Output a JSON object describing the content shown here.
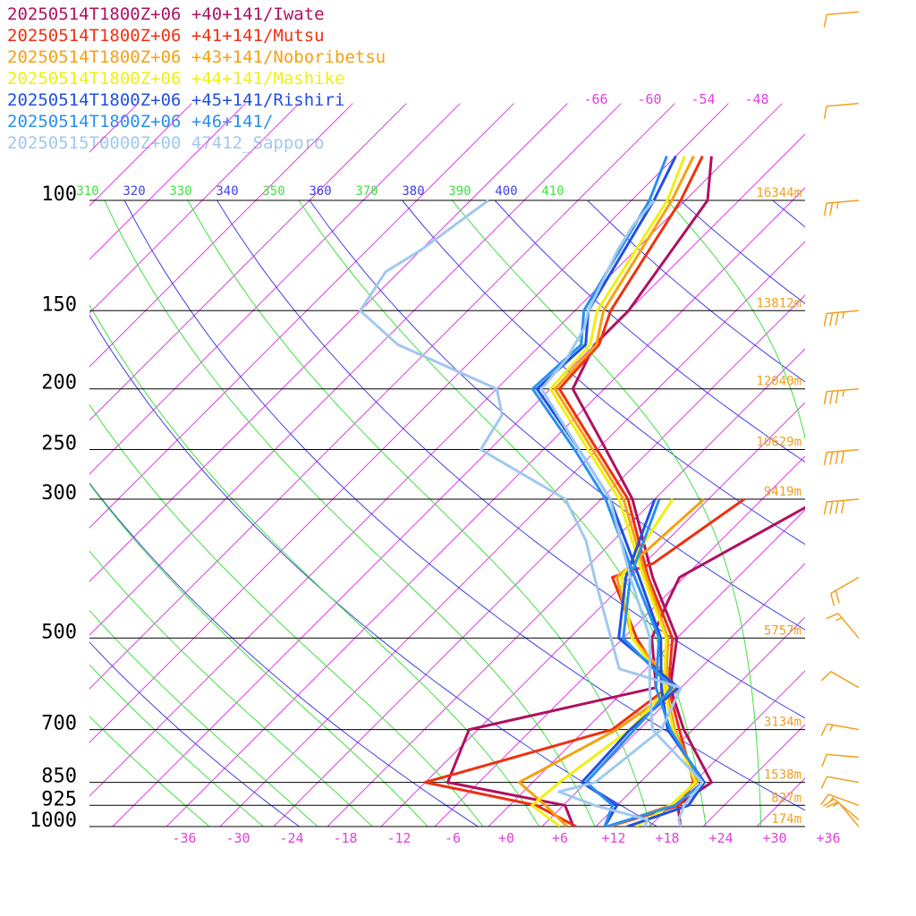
{
  "legend": [
    {
      "label": "20250514T1800Z+06 +40+141/Iwate",
      "color": "#b01060"
    },
    {
      "label": "20250514T1800Z+06 +41+141/Mutsu",
      "color": "#f03010"
    },
    {
      "label": "20250514T1800Z+06 +43+141/Noboribetsu",
      "color": "#f7a010"
    },
    {
      "label": "20250514T1800Z+06 +44+141/Mashike",
      "color": "#f0f010"
    },
    {
      "label": "20250514T1800Z+06 +45+141/Rishiri",
      "color": "#2050e0"
    },
    {
      "label": "20250514T1800Z+06 +46+141/",
      "color": "#2890f0"
    },
    {
      "label": "20250515T0000Z+00 47412_Sapporo",
      "color": "#a0c8f0"
    }
  ],
  "colors": {
    "isotherm": "#e040e0",
    "dry_adiabat": "#4040e8",
    "moist_adiabat": "#40e040",
    "height_label": "#f0a020",
    "wind_barb": "#f0a020",
    "isobar": "#000000"
  },
  "chart_data": {
    "type": "line",
    "subtype": "skew-t log-p sounding",
    "x_axis": {
      "label": "",
      "range": [
        -40,
        40
      ],
      "tick_labels": [
        "-36",
        "-30",
        "-24",
        "-18",
        "-12",
        "-6",
        "+0",
        "+6",
        "+12",
        "+18",
        "+24",
        "+30",
        "+36"
      ]
    },
    "y_axis": {
      "label": "",
      "scale": "log",
      "range": [
        1000,
        100
      ],
      "pressure_levels": [
        {
          "p": 100,
          "label": "100",
          "height": "16344m"
        },
        {
          "p": 150,
          "label": "150",
          "height": "13812m"
        },
        {
          "p": 200,
          "label": "200",
          "height": "12040m"
        },
        {
          "p": 250,
          "label": "250",
          "height": "10629m"
        },
        {
          "p": 300,
          "label": "300",
          "height": "9419m"
        },
        {
          "p": 500,
          "label": "500",
          "height": "5757m"
        },
        {
          "p": 700,
          "label": "700",
          "height": "3134m"
        },
        {
          "p": 850,
          "label": "850",
          "height": "1538m"
        },
        {
          "p": 925,
          "label": "925",
          "height": "827m"
        },
        {
          "p": 1000,
          "label": "1000",
          "height": "174m"
        }
      ]
    },
    "theta_labels": [
      {
        "t": "310",
        "kind": "moist"
      },
      {
        "t": "320",
        "kind": "dry"
      },
      {
        "t": "330",
        "kind": "moist"
      },
      {
        "t": "340",
        "kind": "dry"
      },
      {
        "t": "350",
        "kind": "moist"
      },
      {
        "t": "360",
        "kind": "dry"
      },
      {
        "t": "370",
        "kind": "moist"
      },
      {
        "t": "380",
        "kind": "dry"
      },
      {
        "t": "390",
        "kind": "moist"
      },
      {
        "t": "400",
        "kind": "dry"
      },
      {
        "t": "410",
        "kind": "moist"
      }
    ],
    "upper_isotherm_labels": [
      "-66",
      "-60",
      "-54",
      "-48"
    ],
    "series": [
      {
        "name": "20250514T1800Z+06 +40+141/Iwate",
        "temperature": [
          [
            1000,
            19.5
          ],
          [
            925,
            16.8
          ],
          [
            850,
            18.0
          ],
          [
            700,
            9.0
          ],
          [
            600,
            2.8
          ],
          [
            500,
            -2.0
          ],
          [
            400,
            -11.5
          ],
          [
            300,
            -22.5
          ],
          [
            250,
            -31.0
          ],
          [
            200,
            -41.5
          ],
          [
            170,
            -44.0
          ],
          [
            150,
            -44.0
          ],
          [
            100,
            -47.5
          ],
          [
            85,
            -52.0
          ]
        ],
        "dewpoint": [
          [
            1000,
            7.5
          ],
          [
            925,
            4.2
          ],
          [
            850,
            -11.5
          ],
          [
            700,
            -15.0
          ],
          [
            600,
            1.2
          ],
          [
            500,
            -4.8
          ],
          [
            440,
            -7.0
          ],
          [
            400,
            -8.5
          ],
          [
            300,
            -1.5
          ]
        ]
      },
      {
        "name": "20250514T1800Z+06 +41+141/Mutsu",
        "temperature": [
          [
            1000,
            11.5
          ],
          [
            925,
            17.0
          ],
          [
            850,
            16.0
          ],
          [
            700,
            8.5
          ],
          [
            600,
            2.6
          ],
          [
            500,
            -2.5
          ],
          [
            400,
            -12.0
          ],
          [
            300,
            -23.0
          ],
          [
            250,
            -32.0
          ],
          [
            200,
            -43.0
          ],
          [
            170,
            -43.5
          ],
          [
            150,
            -46.0
          ],
          [
            100,
            -50.5
          ],
          [
            85,
            -53.0
          ]
        ],
        "dewpoint": [
          [
            1000,
            7.8
          ],
          [
            925,
            1.0
          ],
          [
            850,
            -14.0
          ],
          [
            700,
            1.0
          ],
          [
            600,
            2.5
          ],
          [
            500,
            -6.5
          ],
          [
            400,
            -16.0
          ],
          [
            380,
            -13.0
          ],
          [
            300,
            -10.0
          ]
        ]
      },
      {
        "name": "20250514T1800Z+06 +43+141/Noboribetsu",
        "temperature": [
          [
            1000,
            11.5
          ],
          [
            925,
            16.0
          ],
          [
            850,
            16.4
          ],
          [
            700,
            8.0
          ],
          [
            600,
            2.3
          ],
          [
            500,
            -3.0
          ],
          [
            400,
            -12.2
          ],
          [
            300,
            -23.5
          ],
          [
            250,
            -32.5
          ],
          [
            200,
            -43.5
          ],
          [
            170,
            -43.8
          ],
          [
            150,
            -46.8
          ],
          [
            100,
            -51.5
          ],
          [
            85,
            -54.0
          ]
        ],
        "dewpoint": [
          [
            1000,
            6.8
          ],
          [
            925,
            2.0
          ],
          [
            850,
            -3.5
          ],
          [
            700,
            1.5
          ],
          [
            600,
            3.5
          ],
          [
            500,
            -7.0
          ],
          [
            400,
            -15.5
          ],
          [
            300,
            -14.5
          ]
        ]
      },
      {
        "name": "20250514T1800Z+06 +44+141/Mashike",
        "temperature": [
          [
            1000,
            14.5
          ],
          [
            925,
            16.0
          ],
          [
            850,
            16.2
          ],
          [
            700,
            7.8
          ],
          [
            600,
            2.1
          ],
          [
            500,
            -3.2
          ],
          [
            400,
            -12.5
          ],
          [
            300,
            -24.0
          ],
          [
            250,
            -33.0
          ],
          [
            200,
            -44.0
          ],
          [
            170,
            -44.5
          ],
          [
            150,
            -47.5
          ],
          [
            100,
            -52.0
          ],
          [
            85,
            -55.0
          ]
        ],
        "dewpoint": [
          [
            1000,
            6.0
          ],
          [
            925,
            0.5
          ],
          [
            850,
            1.0
          ],
          [
            700,
            3.0
          ],
          [
            600,
            2.5
          ],
          [
            500,
            -7.0
          ],
          [
            400,
            -15.0
          ],
          [
            300,
            -18.0
          ]
        ]
      },
      {
        "name": "20250514T1800Z+06 +45+141/Rishiri",
        "temperature": [
          [
            1000,
            13.5
          ],
          [
            925,
            18.0
          ],
          [
            850,
            17.2
          ],
          [
            700,
            7.2
          ],
          [
            600,
            1.8
          ],
          [
            500,
            -3.8
          ],
          [
            400,
            -13.0
          ],
          [
            300,
            -25.0
          ],
          [
            250,
            -34.0
          ],
          [
            200,
            -45.5
          ],
          [
            170,
            -45.0
          ],
          [
            150,
            -48.5
          ],
          [
            100,
            -53.5
          ],
          [
            85,
            -56.0
          ]
        ],
        "dewpoint": [
          [
            1000,
            11.0
          ],
          [
            925,
            10.0
          ],
          [
            850,
            3.5
          ],
          [
            700,
            3.0
          ],
          [
            600,
            3.7
          ],
          [
            500,
            -8.5
          ],
          [
            400,
            -14.5
          ],
          [
            300,
            -20.0
          ]
        ]
      },
      {
        "name": "20250514T1800Z+06 +46+141/",
        "temperature": [
          [
            1000,
            11.2
          ],
          [
            925,
            16.5
          ],
          [
            850,
            17.0
          ],
          [
            700,
            7.5
          ],
          [
            600,
            1.2
          ],
          [
            500,
            -4.0
          ],
          [
            400,
            -13.5
          ],
          [
            300,
            -25.5
          ],
          [
            250,
            -34.5
          ],
          [
            200,
            -46.0
          ],
          [
            170,
            -45.5
          ],
          [
            150,
            -49.0
          ],
          [
            100,
            -54.0
          ],
          [
            85,
            -57.0
          ]
        ],
        "dewpoint": [
          [
            1000,
            11.0
          ],
          [
            925,
            9.5
          ],
          [
            850,
            4.0
          ],
          [
            700,
            3.5
          ],
          [
            600,
            3.0
          ],
          [
            500,
            -8.0
          ],
          [
            400,
            -14.0
          ],
          [
            300,
            -19.5
          ]
        ]
      },
      {
        "name": "20250515T0000Z+00 47412_Sapporo",
        "temperature": [
          [
            1000,
            19.5
          ],
          [
            975,
            18.5
          ],
          [
            925,
            17.5
          ],
          [
            850,
            17.0
          ],
          [
            700,
            5.5
          ],
          [
            600,
            0.5
          ],
          [
            500,
            -5.0
          ],
          [
            400,
            -14.0
          ],
          [
            300,
            -25.0
          ],
          [
            250,
            -34.0
          ],
          [
            200,
            -45.0
          ],
          [
            180,
            -45.5
          ],
          [
            160,
            -47.0
          ],
          [
            150,
            -48.5
          ],
          [
            120,
            -52.0
          ],
          [
            110,
            -53.0
          ],
          [
            100,
            -53.5
          ]
        ],
        "dewpoint": [
          [
            1000,
            15.5
          ],
          [
            975,
            15.0
          ],
          [
            925,
            7.5
          ],
          [
            880,
            2.0
          ],
          [
            850,
            5.0
          ],
          [
            700,
            6.5
          ],
          [
            600,
            4.0
          ],
          [
            560,
            -5.0
          ],
          [
            400,
            -18.0
          ],
          [
            350,
            -23.0
          ],
          [
            300,
            -30.0
          ],
          [
            250,
            -45.0
          ],
          [
            220,
            -46.5
          ],
          [
            200,
            -50.0
          ],
          [
            170,
            -66.0
          ],
          [
            150,
            -74.0
          ],
          [
            130,
            -75.5
          ],
          [
            120,
            -74.0
          ],
          [
            100,
            -72.0
          ]
        ]
      }
    ],
    "wind_barbs": [
      {
        "p": 1000,
        "speed_kt": 10,
        "dir": 320
      },
      {
        "p": 975,
        "speed_kt": 15,
        "dir": 310
      },
      {
        "p": 925,
        "speed_kt": 15,
        "dir": 290
      },
      {
        "p": 850,
        "speed_kt": 10,
        "dir": 280
      },
      {
        "p": 775,
        "speed_kt": 10,
        "dir": 275
      },
      {
        "p": 700,
        "speed_kt": 15,
        "dir": 280
      },
      {
        "p": 600,
        "speed_kt": 10,
        "dir": 300
      },
      {
        "p": 500,
        "speed_kt": 15,
        "dir": 320
      },
      {
        "p": 400,
        "speed_kt": 20,
        "dir": 240
      },
      {
        "p": 300,
        "speed_kt": 40,
        "dir": 265
      },
      {
        "p": 250,
        "speed_kt": 40,
        "dir": 265
      },
      {
        "p": 200,
        "speed_kt": 35,
        "dir": 265
      },
      {
        "p": 150,
        "speed_kt": 35,
        "dir": 265
      },
      {
        "p": 100,
        "speed_kt": 25,
        "dir": 265
      },
      {
        "p": 70,
        "speed_kt": 10,
        "dir": 265
      },
      {
        "p": 50,
        "speed_kt": 10,
        "dir": 265
      }
    ]
  }
}
